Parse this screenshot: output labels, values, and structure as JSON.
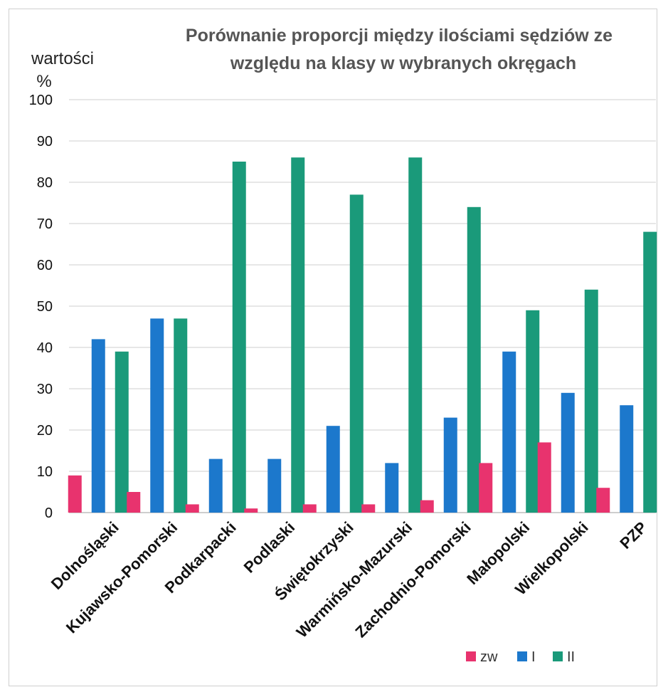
{
  "chart_data": {
    "type": "bar",
    "title_line1": "Porównanie proporcji między ilościami sędziów ze",
    "title_line2": "względu na klasy w wybranych okręgach",
    "ylabel_line1": "wartości",
    "ylabel_line2": "%",
    "xlabel": "",
    "ylim": [
      0,
      100
    ],
    "yticks": [
      0,
      10,
      20,
      30,
      40,
      50,
      60,
      70,
      80,
      90,
      100
    ],
    "grid": true,
    "legend_position": "bottom-right",
    "categories": [
      "Dolnośląski",
      "Kujawsko-Pomorski",
      "Podkarpacki",
      "Podlaski",
      "Świętokrzyski",
      "Warmińsko-Mazurski",
      "Zachodnio-Pomorski",
      "Małopolski",
      "Wielkopolski",
      "PZP"
    ],
    "series": [
      {
        "name": "zw",
        "color": "#e8336e",
        "values": [
          9,
          5,
          2,
          1,
          2,
          2,
          3,
          12,
          17,
          6
        ]
      },
      {
        "name": "I",
        "color": "#1c78cc",
        "values": [
          42,
          47,
          13,
          13,
          21,
          12,
          23,
          39,
          29,
          26
        ]
      },
      {
        "name": "II",
        "color": "#1a9a7a",
        "values": [
          39,
          47,
          85,
          86,
          77,
          86,
          74,
          49,
          54,
          68
        ]
      }
    ]
  }
}
